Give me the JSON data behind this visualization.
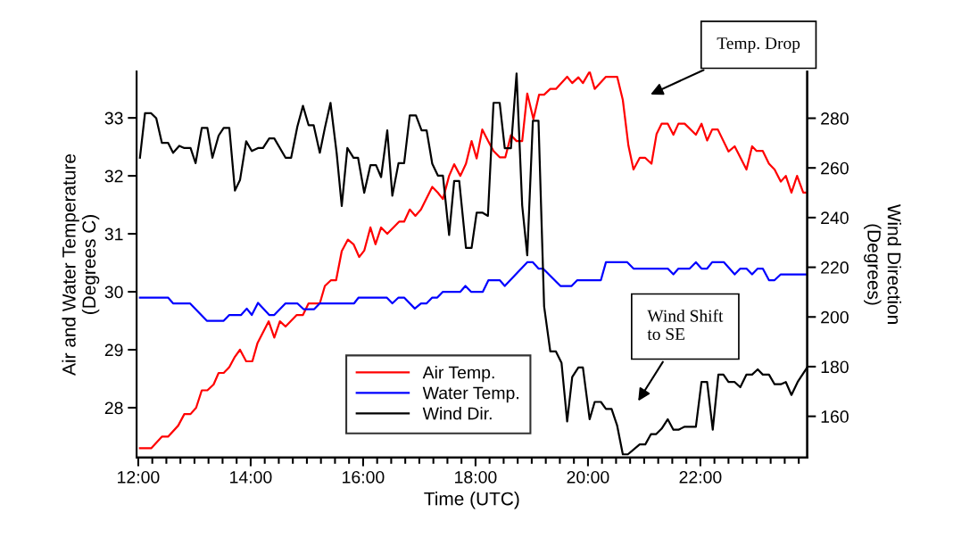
{
  "chart_data": {
    "type": "line",
    "xlabel": "Time (UTC)",
    "ylabel": "Air and Water Temperature\n(Degrees C)",
    "y2label": "Wind Direction\n(Degrees)",
    "xlim": [
      11.97,
      23.9
    ],
    "xticks": [
      {
        "value": 12,
        "label": "12:00"
      },
      {
        "value": 14,
        "label": "14:00"
      },
      {
        "value": 16,
        "label": "16:00"
      },
      {
        "value": 18,
        "label": "18:00"
      },
      {
        "value": 20,
        "label": "20:00"
      },
      {
        "value": 22,
        "label": "22:00"
      }
    ],
    "ylim": [
      27.14,
      33.8
    ],
    "yticks": [
      28,
      29,
      30,
      31,
      32,
      33
    ],
    "y2lim": [
      143.4,
      298.8
    ],
    "y2ticks": [
      160,
      180,
      200,
      220,
      240,
      260,
      280
    ],
    "grid": false,
    "legend": "bottom",
    "marker": "none",
    "line_style": "solid",
    "series": [
      {
        "name": "Air Temp.",
        "color": "#ff0000",
        "x": [
          12.03,
          12.23,
          12.42,
          12.53,
          12.71,
          12.82,
          12.93,
          13.03,
          13.13,
          13.23,
          13.34,
          13.43,
          13.52,
          13.62,
          13.72,
          13.81,
          13.92,
          14.03,
          14.12,
          14.32,
          14.42,
          14.52,
          14.62,
          14.82,
          14.93,
          15.03,
          15.23,
          15.32,
          15.43,
          15.52,
          15.62,
          15.73,
          15.83,
          15.93,
          16.02,
          16.13,
          16.22,
          16.32,
          16.43,
          16.64,
          16.73,
          16.83,
          16.93,
          17.03,
          17.23,
          17.33,
          17.42,
          17.53,
          17.62,
          17.73,
          17.83,
          17.93,
          18.02,
          18.12,
          18.22,
          18.32,
          18.43,
          18.53,
          18.63,
          18.73,
          18.83,
          18.92,
          19.03,
          19.13,
          19.22,
          19.33,
          19.43,
          19.63,
          19.72,
          19.83,
          19.91,
          20.03,
          20.12,
          20.32,
          20.52,
          20.62,
          20.72,
          20.81,
          20.92,
          21.02,
          21.13,
          21.22,
          21.31,
          21.42,
          21.52,
          21.61,
          21.72,
          21.92,
          22.02,
          22.12,
          22.21,
          22.31,
          22.5,
          22.61,
          22.82,
          22.92,
          23.0,
          23.11,
          23.22,
          23.32,
          23.43,
          23.52,
          23.62,
          23.72,
          23.83,
          23.9
        ],
        "values": [
          27.3,
          27.3,
          27.5,
          27.5,
          27.69,
          27.89,
          27.89,
          28.0,
          28.3,
          28.3,
          28.4,
          28.6,
          28.6,
          28.7,
          28.88,
          29.0,
          28.8,
          28.8,
          29.11,
          29.49,
          29.21,
          29.49,
          29.4,
          29.6,
          29.6,
          29.8,
          29.8,
          30.1,
          30.2,
          30.2,
          30.7,
          30.9,
          30.82,
          30.6,
          30.71,
          31.11,
          30.82,
          31.11,
          31.0,
          31.21,
          31.21,
          31.42,
          31.31,
          31.42,
          31.81,
          31.71,
          31.6,
          32.0,
          32.2,
          32.0,
          32.21,
          32.6,
          32.3,
          32.8,
          32.61,
          32.43,
          32.32,
          32.32,
          32.7,
          32.6,
          32.6,
          33.42,
          32.98,
          33.4,
          33.4,
          33.5,
          33.5,
          33.71,
          33.6,
          33.7,
          33.6,
          33.8,
          33.5,
          33.71,
          33.71,
          33.31,
          32.52,
          32.11,
          32.31,
          32.31,
          32.21,
          32.72,
          32.9,
          32.9,
          32.71,
          32.9,
          32.9,
          32.71,
          32.9,
          32.61,
          32.8,
          32.8,
          32.42,
          32.51,
          32.11,
          32.51,
          32.43,
          32.43,
          32.21,
          32.11,
          31.9,
          32.0,
          31.71,
          32.0,
          31.71,
          31.71
        ]
      },
      {
        "name": "Water Temp.",
        "color": "#0000ff",
        "x": [
          12.03,
          12.53,
          12.62,
          12.92,
          13.22,
          13.52,
          13.62,
          13.83,
          13.93,
          14.02,
          14.13,
          14.33,
          14.42,
          14.62,
          14.83,
          14.94,
          15.13,
          15.23,
          15.84,
          15.92,
          16.42,
          16.52,
          16.63,
          16.73,
          16.92,
          17.03,
          17.13,
          17.23,
          17.32,
          17.42,
          17.73,
          17.82,
          17.92,
          18.13,
          18.23,
          18.43,
          18.52,
          18.92,
          19.02,
          19.12,
          19.2,
          19.51,
          19.71,
          19.81,
          20.23,
          20.32,
          20.7,
          20.81,
          21.42,
          21.52,
          21.61,
          21.81,
          21.92,
          22.02,
          22.12,
          22.21,
          22.42,
          22.61,
          22.71,
          22.82,
          22.92,
          23.02,
          23.11,
          23.22,
          23.32,
          23.43,
          23.9
        ],
        "values": [
          29.9,
          29.9,
          29.8,
          29.8,
          29.5,
          29.5,
          29.6,
          29.6,
          29.71,
          29.6,
          29.81,
          29.6,
          29.6,
          29.8,
          29.8,
          29.7,
          29.7,
          29.8,
          29.8,
          29.9,
          29.9,
          29.8,
          29.9,
          29.9,
          29.71,
          29.8,
          29.8,
          29.9,
          29.9,
          30.0,
          30.0,
          30.1,
          30.0,
          30.0,
          30.2,
          30.2,
          30.1,
          30.51,
          30.51,
          30.4,
          30.4,
          30.1,
          30.1,
          30.2,
          30.2,
          30.51,
          30.51,
          30.4,
          30.4,
          30.3,
          30.4,
          30.4,
          30.51,
          30.4,
          30.4,
          30.51,
          30.51,
          30.3,
          30.4,
          30.4,
          30.3,
          30.4,
          30.4,
          30.2,
          30.2,
          30.3,
          30.3
        ]
      },
      {
        "name": "Wind Dir.",
        "color": "#000000",
        "axis": "y2",
        "x": [
          12.03,
          12.12,
          12.23,
          12.32,
          12.42,
          12.53,
          12.62,
          12.73,
          12.82,
          12.93,
          13.02,
          13.13,
          13.23,
          13.32,
          13.43,
          13.52,
          13.62,
          13.72,
          13.81,
          13.92,
          14.02,
          14.13,
          14.22,
          14.33,
          14.42,
          14.62,
          14.72,
          14.83,
          14.93,
          15.03,
          15.12,
          15.23,
          15.32,
          15.42,
          15.53,
          15.62,
          15.72,
          15.83,
          15.91,
          16.02,
          16.13,
          16.23,
          16.32,
          16.43,
          16.52,
          16.63,
          16.73,
          16.83,
          16.94,
          17.04,
          17.13,
          17.23,
          17.33,
          17.42,
          17.53,
          17.62,
          17.71,
          17.83,
          17.93,
          18.02,
          18.12,
          18.22,
          18.32,
          18.43,
          18.52,
          18.63,
          18.73,
          18.83,
          18.92,
          19.02,
          19.12,
          19.22,
          19.33,
          19.43,
          19.53,
          19.63,
          19.72,
          19.83,
          19.91,
          20.03,
          20.12,
          20.23,
          20.32,
          20.42,
          20.52,
          20.62,
          20.71,
          20.92,
          21.02,
          21.12,
          21.21,
          21.31,
          21.42,
          21.52,
          21.61,
          21.72,
          21.92,
          22.02,
          22.12,
          22.22,
          22.32,
          22.41,
          22.5,
          22.61,
          22.71,
          22.82,
          22.92,
          23.02,
          23.11,
          23.22,
          23.32,
          23.43,
          23.52,
          23.62,
          23.73,
          23.9
        ],
        "values": [
          264.1,
          282.0,
          282.0,
          280.0,
          270.1,
          270.1,
          266.1,
          268.9,
          268.0,
          268.0,
          261.9,
          276.1,
          276.1,
          264.1,
          273.0,
          276.1,
          276.1,
          250.9,
          255.1,
          270.7,
          266.8,
          268.0,
          268.0,
          271.9,
          271.9,
          264.1,
          264.1,
          276.6,
          285.0,
          277.2,
          277.2,
          266.1,
          276.1,
          286.2,
          265.9,
          244.7,
          268.0,
          264.1,
          264.1,
          250.0,
          261.1,
          261.1,
          256.3,
          275.1,
          248.8,
          261.9,
          261.9,
          281.1,
          281.1,
          275.1,
          275.1,
          261.7,
          256.9,
          256.9,
          233.0,
          254.7,
          254.7,
          227.8,
          227.8,
          242.0,
          242.0,
          240.7,
          286.2,
          286.2,
          267.9,
          267.9,
          298.0,
          244.9,
          224.8,
          279.0,
          279.0,
          204.3,
          186.1,
          186.1,
          181.5,
          157.9,
          175.8,
          179.7,
          179.7,
          158.8,
          165.8,
          165.8,
          163.0,
          163.0,
          156.2,
          144.7,
          144.7,
          148.7,
          148.7,
          152.8,
          152.8,
          155.0,
          158.8,
          154.6,
          154.6,
          155.8,
          155.8,
          173.8,
          173.8,
          154.6,
          176.8,
          176.8,
          173.8,
          173.8,
          171.7,
          176.8,
          176.8,
          178.9,
          176.8,
          176.8,
          172.9,
          172.9,
          173.8,
          168.6,
          173.8,
          179.7
        ]
      }
    ],
    "annotations": [
      "Temp. Drop",
      "Wind Shift\nto SE"
    ]
  }
}
